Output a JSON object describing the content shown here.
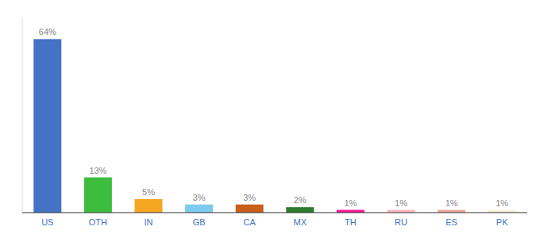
{
  "chart_data": {
    "type": "bar",
    "categories": [
      "US",
      "OTH",
      "IN",
      "GB",
      "CA",
      "MX",
      "TH",
      "RU",
      "ES",
      "PK"
    ],
    "values": [
      64,
      13,
      5,
      3,
      3,
      2,
      1,
      1,
      1,
      1
    ],
    "value_labels": [
      "64%",
      "13%",
      "5%",
      "3%",
      "3%",
      "2%",
      "1%",
      "1%",
      "1%",
      "1%"
    ],
    "colors": [
      "#4472c4",
      "#3dbd3d",
      "#f5a623",
      "#7ecbf0",
      "#c8601a",
      "#2d7a2d",
      "#ff1493",
      "#ffb6c1",
      "#e8a898",
      "#f5f0d8"
    ],
    "ylim": [
      0,
      72
    ],
    "data_labels": true,
    "tick_labels": "x",
    "grid": false
  }
}
